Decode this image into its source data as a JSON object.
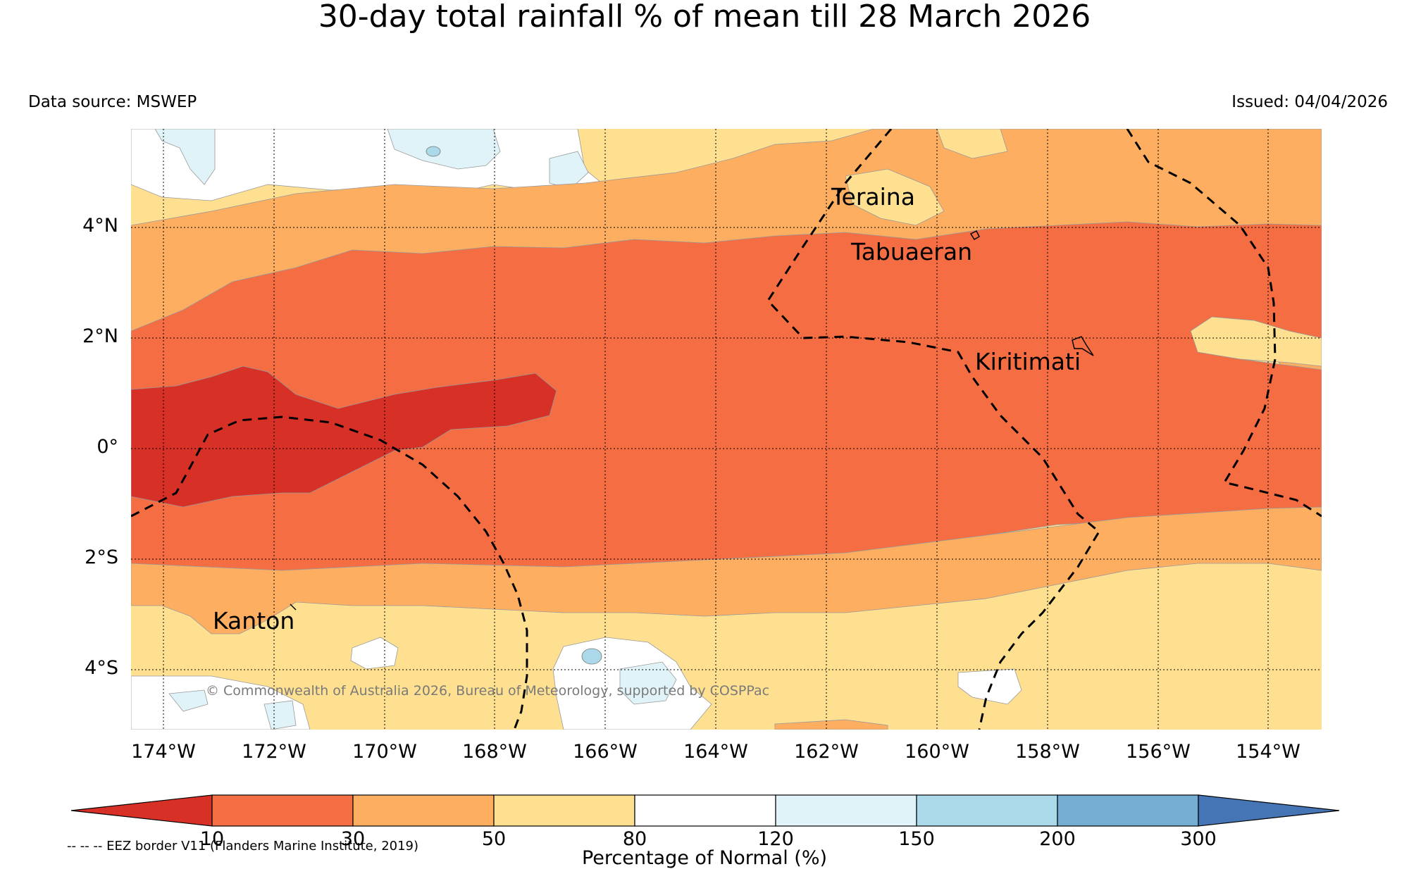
{
  "title": "30-day total rainfall % of mean till 28 March 2026",
  "data_source": "Data source: MSWEP",
  "issued": "Issued: 04/04/2026",
  "latitude_labels": [
    "4°N",
    "2°N",
    "0°",
    "2°S",
    "4°S"
  ],
  "longitude_labels": [
    "174°W",
    "172°W",
    "170°W",
    "168°W",
    "166°W",
    "164°W",
    "162°W",
    "160°W",
    "158°W",
    "156°W",
    "154°W"
  ],
  "places": {
    "teraina": "Teraina",
    "tabuaeran": "Tabuaeran",
    "kiritimati": "Kiritimati",
    "kanton": "Kanton"
  },
  "copyright": "© Commonwealth of Australia 2026, Bureau of Meteorology, supported by COSPPac",
  "colorbar": {
    "ticks": [
      "10",
      "30",
      "50",
      "80",
      "120",
      "150",
      "200",
      "300"
    ],
    "title": "Percentage of Normal (%)",
    "colors": {
      "below_10": "#d73027",
      "r10_30": "#f46d43",
      "r30_50": "#fdae61",
      "r50_80": "#fee090",
      "r80_120": "#ffffff",
      "r120_150": "#e0f3f8",
      "r150_200": "#abd9e9",
      "r200_300": "#74add1",
      "above_300": "#4575b4"
    }
  },
  "legend_note": "-- -- -- EEZ border V11 (Flanders Marine Institute, 2019)"
}
